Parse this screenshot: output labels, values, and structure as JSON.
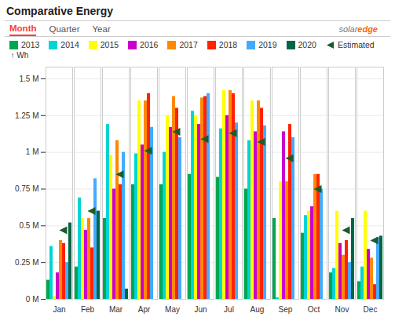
{
  "chart_data": {
    "type": "bar",
    "title": "Comparative Energy",
    "annotations": [
      "Month",
      "Quarter",
      "Year",
      "solar",
      "edge"
    ],
    "ylabel": "Wh",
    "categories": [
      "Jan",
      "Feb",
      "Mar",
      "Apr",
      "May",
      "Jun",
      "Jul",
      "Aug",
      "Sep",
      "Oct",
      "Nov",
      "Dec"
    ],
    "series": [
      {
        "name": "2013",
        "color": "#00a651",
        "values": [
          0.13,
          0.22,
          0.55,
          0.78,
          0.78,
          0.85,
          0.83,
          0.75,
          0.55,
          0.45,
          0.18,
          0.12
        ]
      },
      {
        "name": "2014",
        "color": "#00d4d4",
        "values": [
          0.36,
          0.69,
          1.19,
          0.99,
          1.0,
          1.28,
          1.16,
          1.08,
          0.01,
          0.57,
          0.21,
          0.22
        ]
      },
      {
        "name": "2015",
        "color": "#ffff00",
        "values": [
          0.02,
          0.55,
          0.98,
          1.35,
          1.25,
          1.25,
          1.42,
          1.35,
          0.8,
          0.6,
          0.6,
          0.6
        ]
      },
      {
        "name": "2016",
        "color": "#cc00cc",
        "values": [
          0.18,
          0.47,
          0.75,
          1.05,
          1.17,
          1.19,
          1.25,
          1.14,
          1.14,
          0.63,
          0.38,
          0.34
        ]
      },
      {
        "name": "2017",
        "color": "#ff8800",
        "values": [
          0.4,
          0.55,
          1.08,
          1.35,
          1.38,
          1.37,
          1.42,
          1.35,
          0.8,
          0.85,
          0.3,
          0.28
        ]
      },
      {
        "name": "2018",
        "color": "#ff2200",
        "values": [
          0.38,
          0.35,
          0.78,
          1.4,
          1.3,
          1.38,
          1.4,
          1.3,
          1.19,
          0.85,
          0.4,
          0.1
        ]
      },
      {
        "name": "2019",
        "color": "#44aaff",
        "values": [
          0.25,
          0.82,
          1.0,
          1.17,
          1.1,
          1.4,
          1.2,
          1.18,
          1.1,
          0.75,
          0.25,
          0.42
        ]
      },
      {
        "name": "2020",
        "color": "#006644",
        "values": [
          0.52,
          0.6,
          0.07,
          0.0,
          0.0,
          0.0,
          0.0,
          0.0,
          0.0,
          0.0,
          0.55,
          0.43
        ]
      },
      {
        "name": "Estimated",
        "type": "scatter",
        "marker": "triangle-left",
        "color": "#1a5c2a",
        "values": [
          0.47,
          0.6,
          0.85,
          1.01,
          1.14,
          1.09,
          1.13,
          1.07,
          0.96,
          0.75,
          0.47,
          0.4
        ]
      }
    ],
    "ylim": [
      0,
      1.58
    ],
    "yticks": [
      {
        "value": 0,
        "label": "0 M"
      },
      {
        "value": 0.25,
        "label": "0.25 M"
      },
      {
        "value": 0.5,
        "label": "0.5 M"
      },
      {
        "value": 0.75,
        "label": "0.75 M"
      },
      {
        "value": 1.0,
        "label": "1 M"
      },
      {
        "value": 1.25,
        "label": "1.25 M"
      },
      {
        "value": 1.5,
        "label": "1.5 M"
      }
    ],
    "grid": true,
    "legend": "top"
  }
}
